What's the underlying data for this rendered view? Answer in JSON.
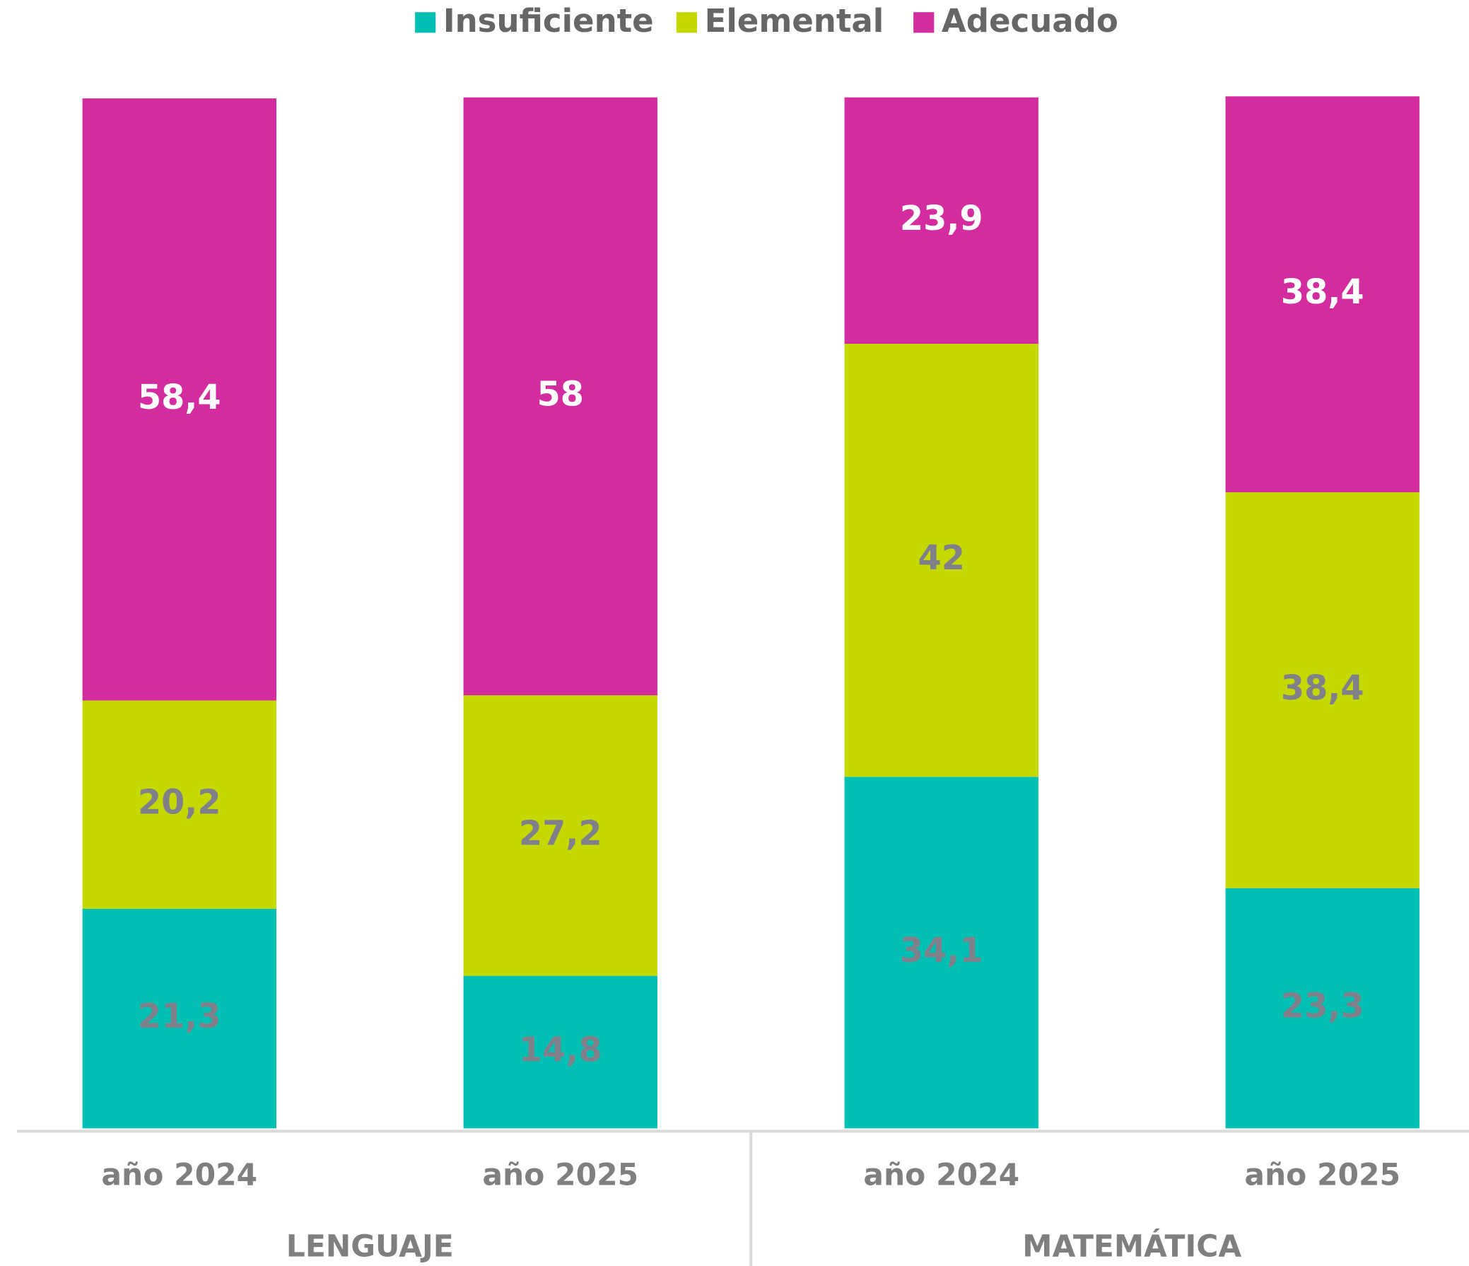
{
  "chart_data": {
    "type": "stacked_bar",
    "categories": [
      "año 2024",
      "año 2025",
      "año 2024",
      "año 2025"
    ],
    "groups": [
      "LENGUAJE",
      "MATEMÁTICA"
    ],
    "ylim": [
      0,
      100
    ],
    "series": [
      {
        "name": "Insuficiente",
        "color": "#00c0b4",
        "label_color": "#80808a",
        "values": [
          21.3,
          14.8,
          34.1,
          23.3
        ],
        "value_labels": [
          "21,3",
          "14,8",
          "34,1",
          "23,3"
        ]
      },
      {
        "name": "Elemental",
        "color": "#c5d800",
        "label_color": "#80808a",
        "values": [
          20.2,
          27.2,
          42,
          38.4
        ],
        "value_labels": [
          "20,2",
          "27,2",
          "42",
          "38,4"
        ]
      },
      {
        "name": "Adecuado",
        "color": "#d22c9e",
        "label_color": "#ffffff",
        "values": [
          58.4,
          58,
          23.9,
          38.4
        ],
        "value_labels": [
          "58,4",
          "58",
          "23,9",
          "38,4"
        ]
      }
    ],
    "legend": "top"
  }
}
